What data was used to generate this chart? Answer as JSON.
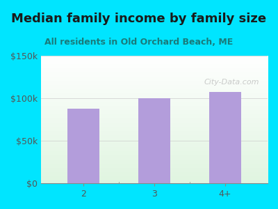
{
  "title": "Median family income by family size",
  "subtitle": "All residents in Old Orchard Beach, ME",
  "categories": [
    "2",
    "3",
    "4+"
  ],
  "values": [
    88000,
    100000,
    107000
  ],
  "bar_color": "#b39ddb",
  "bg_color": "#00e5ff",
  "plot_bg_top": "#ffffff",
  "plot_bg_bottom": "#d4edda",
  "ylim": [
    0,
    150000
  ],
  "yticks": [
    0,
    50000,
    100000,
    150000
  ],
  "ytick_labels": [
    "$0",
    "$50k",
    "$100k",
    "$150k"
  ],
  "title_color": "#1a1a1a",
  "subtitle_color": "#1a7a7a",
  "tick_color": "#555555",
  "watermark": "City-Data.com",
  "title_fontsize": 13,
  "subtitle_fontsize": 9,
  "tick_fontsize": 9
}
